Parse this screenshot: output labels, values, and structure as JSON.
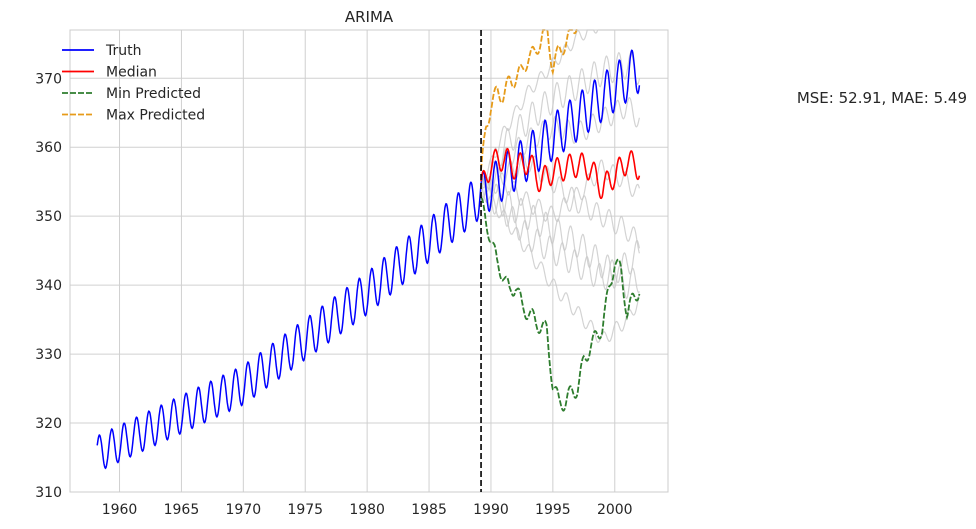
{
  "chart_data": {
    "type": "line",
    "title": "ARIMA",
    "xlabel": "",
    "ylabel": "",
    "xlim": [
      1956.0,
      2004.3
    ],
    "ylim": [
      310,
      377
    ],
    "xticks": [
      1960,
      1965,
      1970,
      1975,
      1980,
      1985,
      1990,
      1995,
      2000
    ],
    "yticks": [
      310,
      320,
      330,
      340,
      350,
      360,
      370
    ],
    "grid": true,
    "legend_position": "top-left",
    "forecast_start": 1989.2,
    "annotation": "MSE: 52.91, MAE: 5.49",
    "colors": {
      "truth": "#0000ff",
      "median": "#ff0000",
      "min": "#2e7d2e",
      "max": "#e69b1a",
      "sample": "#c8c8c8",
      "grid": "#d0d0d0",
      "vline": "#000000"
    },
    "legend": [
      {
        "label": "Truth",
        "color": "#0000ff",
        "dash": false
      },
      {
        "label": "Median",
        "color": "#ff0000",
        "dash": false
      },
      {
        "label": "Min Predicted",
        "color": "#2e7d2e",
        "dash": true
      },
      {
        "label": "Max Predicted",
        "color": "#e69b1a",
        "dash": true
      }
    ],
    "truth_trend": {
      "x": [
        1958.2,
        1970,
        1980,
        1989.2,
        1995,
        2002.0
      ],
      "y": [
        315.5,
        325.5,
        338.8,
        353.0,
        361.5,
        371.5
      ]
    },
    "median_forecast": {
      "x": [
        1989.2,
        1990,
        1991,
        1992,
        1993,
        1994,
        1995,
        1996,
        1997,
        1998,
        1999,
        2000,
        2001,
        2002.0
      ],
      "y": [
        354.0,
        357.5,
        358.5,
        357.0,
        358.0,
        355.0,
        356.5,
        357.0,
        357.5,
        357.0,
        354.0,
        356.0,
        358.0,
        357.0
      ]
    },
    "min_forecast": {
      "x": [
        1989.2,
        1989.6,
        1990.0,
        1990.5,
        1991.0,
        1991.5,
        1992.0,
        1992.5,
        1993.0,
        1993.5,
        1994.0,
        1994.5,
        1995.0,
        1995.5,
        1996.0,
        1996.5,
        1997.0,
        1997.5,
        1998.0,
        1998.5,
        1999.0,
        1999.5,
        2000.0,
        2000.5,
        2001.0,
        2001.5,
        2002.0
      ],
      "y": [
        352.0,
        349.0,
        347.0,
        343.0,
        341.5,
        339.0,
        340.0,
        337.0,
        336.0,
        335.0,
        334.0,
        333.5,
        325.5,
        323.0,
        323.0,
        324.5,
        325.0,
        329.0,
        331.0,
        332.5,
        334.0,
        339.0,
        343.5,
        342.0,
        336.0,
        338.0,
        339.5
      ]
    },
    "max_forecast": {
      "x": [
        1989.2,
        1989.6,
        1990.0,
        1990.5,
        1991.0,
        1991.5,
        1992.0,
        1992.5,
        1993.0,
        1993.5,
        1994.0,
        1994.5,
        1995.0,
        1995.5,
        1996.0,
        1996.5,
        1997.0
      ],
      "y": [
        356.0,
        363.0,
        366.0,
        368.0,
        367.5,
        369.5,
        370.0,
        371.0,
        373.0,
        373.5,
        375.5,
        377.5,
        371.5,
        374.0,
        375.0,
        376.5,
        378.5
      ]
    },
    "sample_forecasts": [
      {
        "x": [
          1989.2,
          1991,
          1993,
          1995,
          1997,
          1999,
          2001,
          2002.0
        ],
        "y": [
          354,
          356,
          358,
          355,
          352,
          350,
          348,
          346
        ]
      },
      {
        "x": [
          1989.2,
          1991,
          1993,
          1995,
          1997,
          1999,
          2001,
          2002.0
        ],
        "y": [
          354,
          352,
          350,
          348,
          346,
          343,
          340,
          341
        ]
      },
      {
        "x": [
          1989.2,
          1991,
          1993,
          1995,
          1997,
          1999,
          2001,
          2002.0
        ],
        "y": [
          354,
          360,
          364,
          367,
          369,
          371,
          372,
          371
        ]
      },
      {
        "x": [
          1989.2,
          1991,
          1993,
          1995,
          1997,
          1999,
          2001,
          2002.0
        ],
        "y": [
          354,
          358,
          361,
          363,
          362,
          364,
          366,
          364
        ]
      },
      {
        "x": [
          1989.2,
          1991,
          1993,
          1995,
          1997,
          1999,
          2001,
          2002.0
        ],
        "y": [
          354,
          350,
          345,
          340,
          336,
          332,
          335,
          338
        ]
      },
      {
        "x": [
          1989.2,
          1991,
          1993,
          1995,
          1997,
          1999,
          2001,
          2002.0
        ],
        "y": [
          354,
          362,
          368,
          372,
          376,
          378,
          379,
          379
        ]
      },
      {
        "x": [
          1989.2,
          1991,
          1993,
          1995,
          1997,
          1999,
          2001,
          2002.0
        ],
        "y": [
          354,
          355,
          352,
          350,
          353,
          357,
          355,
          353
        ]
      },
      {
        "x": [
          1989.2,
          1991,
          1993,
          1995,
          1997,
          1999,
          2001,
          2002.0
        ],
        "y": [
          354,
          351,
          347,
          345,
          343,
          341,
          343,
          345
        ]
      }
    ]
  }
}
